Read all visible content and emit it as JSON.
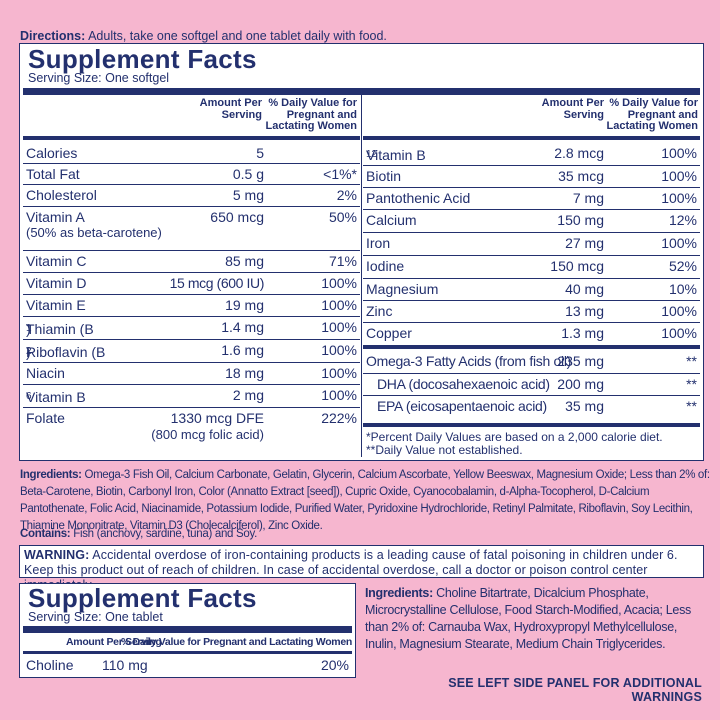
{
  "directions": {
    "label": "Directions:",
    "text": "Adults, take one softgel and one tablet daily with food."
  },
  "panel1": {
    "title": "Supplement Facts",
    "serving_size": "Serving Size: One softgel",
    "header": {
      "amount": [
        "Amount Per",
        "Serving"
      ],
      "dv": [
        "% Daily Value for",
        "Pregnant and",
        "Lactating Women"
      ]
    },
    "left_rows": [
      {
        "name": "Calories",
        "amount": "5",
        "dv": ""
      },
      {
        "name": "Total Fat",
        "amount": "0.5 g",
        "dv": "<1%*"
      },
      {
        "name": "Cholesterol",
        "amount": "5 mg",
        "dv": "2%"
      },
      {
        "name": "Vitamin A",
        "name2": "(50% as beta-carotene)",
        "amount": "650 mcg",
        "dv": "50%"
      },
      {
        "name": "Vitamin C",
        "amount": "85 mg",
        "dv": "71%"
      },
      {
        "name": "Vitamin D",
        "amount": "15 mcg (600 IU)",
        "dv": "100%"
      },
      {
        "name": "Vitamin E",
        "amount": "19 mg",
        "dv": "100%"
      },
      {
        "name": "Thiamin (B",
        "sub": "1",
        "tail": ")",
        "amount": "1.4 mg",
        "dv": "100%"
      },
      {
        "name": "Riboflavin (B",
        "sub": "2",
        "tail": ")",
        "amount": "1.6 mg",
        "dv": "100%"
      },
      {
        "name": "Niacin",
        "amount": "18 mg",
        "dv": "100%"
      },
      {
        "name": "Vitamin B",
        "sub": "6",
        "tail": "",
        "amount": "2 mg",
        "dv": "100%"
      },
      {
        "name": "Folate",
        "amount": "1330 mcg DFE",
        "amount2": "(800 mcg folic acid)",
        "dv": "222%"
      }
    ],
    "right_rows": [
      {
        "name": "Vitamin B",
        "sub": "12",
        "amount": "2.8 mcg",
        "dv": "100%"
      },
      {
        "name": "Biotin",
        "amount": "35 mcg",
        "dv": "100%"
      },
      {
        "name": "Pantothenic Acid",
        "amount": "7 mg",
        "dv": "100%"
      },
      {
        "name": "Calcium",
        "amount": "150 mg",
        "dv": "12%"
      },
      {
        "name": "Iron",
        "amount": "27 mg",
        "dv": "100%"
      },
      {
        "name": "Iodine",
        "amount": "150 mcg",
        "dv": "52%"
      },
      {
        "name": "Magnesium",
        "amount": "40 mg",
        "dv": "10%"
      },
      {
        "name": "Zinc",
        "amount": "13 mg",
        "dv": "100%"
      },
      {
        "name": "Copper",
        "amount": "1.3 mg",
        "dv": "100%"
      }
    ],
    "omega_rows": [
      {
        "name": "Omega-3 Fatty Acids (from fish oil)",
        "amount": "235 mg",
        "dv": "**"
      },
      {
        "name": "DHA (docosahexaenoic acid)",
        "amount": "200 mg",
        "dv": "**"
      },
      {
        "name": "EPA (eicosapentaenoic acid)",
        "amount": "35 mg",
        "dv": "**"
      }
    ],
    "notes": [
      "*Percent Daily Values are based on a 2,000 calorie diet.",
      "**Daily Value not established."
    ]
  },
  "ingredients": {
    "label": "Ingredients:",
    "text": "Omega-3 Fish Oil, Calcium Carbonate, Gelatin, Glycerin, Calcium Ascorbate, Yellow Beeswax, Magnesium Oxide; Less than 2% of: Beta-Carotene, Biotin, Carbonyl Iron, Color (Annatto Extract [seed]), Cupric Oxide, Cyanocobalamin, d-Alpha-Tocopherol, D-Calcium Pantothenate, Folic Acid, Niacinamide, Potassium Iodide, Purified Water, Pyridoxine Hydrochloride, Retinyl Palmitate, Riboflavin, Soy Lecithin, Thiamine Mononitrate, Vitamin D3 (Cholecalciferol), Zinc Oxide."
  },
  "contains": {
    "label": "Contains:",
    "text": "Fish (anchovy, sardine, tuna) and Soy."
  },
  "warning": {
    "label": "WARNING:",
    "text": "Accidental overdose of iron-containing products is a leading cause of fatal poisoning in children under 6. Keep this product out of reach of children. In case of accidental overdose, call a doctor or poison control center immediately."
  },
  "panel2": {
    "title": "Supplement Facts",
    "serving_size": "Serving Size: One tablet",
    "header_amount": "Amount Per Serving",
    "header_dv": "% Daily Value for Pregnant and Lactating Women",
    "rows": [
      {
        "name": "Choline",
        "amount": "110 mg",
        "dv": "20%"
      }
    ]
  },
  "ingredients2": {
    "label": "Ingredients:",
    "text": "Choline Bitartrate, Dicalcium Phosphate, Microcrystalline Cellulose, Food Starch-Modified, Acacia; Less than 2% of: Carnauba Wax, Hydroxypropyl Methylcellulose, Inulin, Magnesium Stearate, Medium Chain Triglycerides."
  },
  "footer": "SEE LEFT SIDE PANEL FOR ADDITIONAL WARNINGS",
  "colors": {
    "background": "#f6b6cf",
    "text": "#23306e",
    "panel": "#ffffff"
  }
}
